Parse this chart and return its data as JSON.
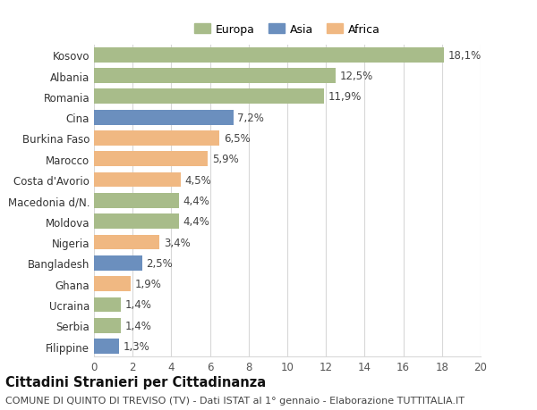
{
  "categories": [
    "Filippine",
    "Serbia",
    "Ucraina",
    "Ghana",
    "Bangladesh",
    "Nigeria",
    "Moldova",
    "Macedonia d/N.",
    "Costa d'Avorio",
    "Marocco",
    "Burkina Faso",
    "Cina",
    "Romania",
    "Albania",
    "Kosovo"
  ],
  "values": [
    1.3,
    1.4,
    1.4,
    1.9,
    2.5,
    3.4,
    4.4,
    4.4,
    4.5,
    5.9,
    6.5,
    7.2,
    11.9,
    12.5,
    18.1
  ],
  "colors": [
    "#6b8fbe",
    "#a8bc8a",
    "#a8bc8a",
    "#f0b882",
    "#6b8fbe",
    "#f0b882",
    "#a8bc8a",
    "#a8bc8a",
    "#f0b882",
    "#f0b882",
    "#f0b882",
    "#6b8fbe",
    "#a8bc8a",
    "#a8bc8a",
    "#a8bc8a"
  ],
  "legend_labels": [
    "Europa",
    "Asia",
    "Africa"
  ],
  "legend_colors": [
    "#a8bc8a",
    "#6b8fbe",
    "#f0b882"
  ],
  "title": "Cittadini Stranieri per Cittadinanza",
  "subtitle": "COMUNE DI QUINTO DI TREVISO (TV) - Dati ISTAT al 1° gennaio - Elaborazione TUTTITALIA.IT",
  "xlim": [
    0,
    20
  ],
  "xticks": [
    0,
    2,
    4,
    6,
    8,
    10,
    12,
    14,
    16,
    18,
    20
  ],
  "background_color": "#ffffff",
  "grid_color": "#d8d8d8",
  "bar_height": 0.72,
  "label_fontsize": 8.5,
  "tick_fontsize": 8.5,
  "title_fontsize": 10.5,
  "subtitle_fontsize": 8
}
